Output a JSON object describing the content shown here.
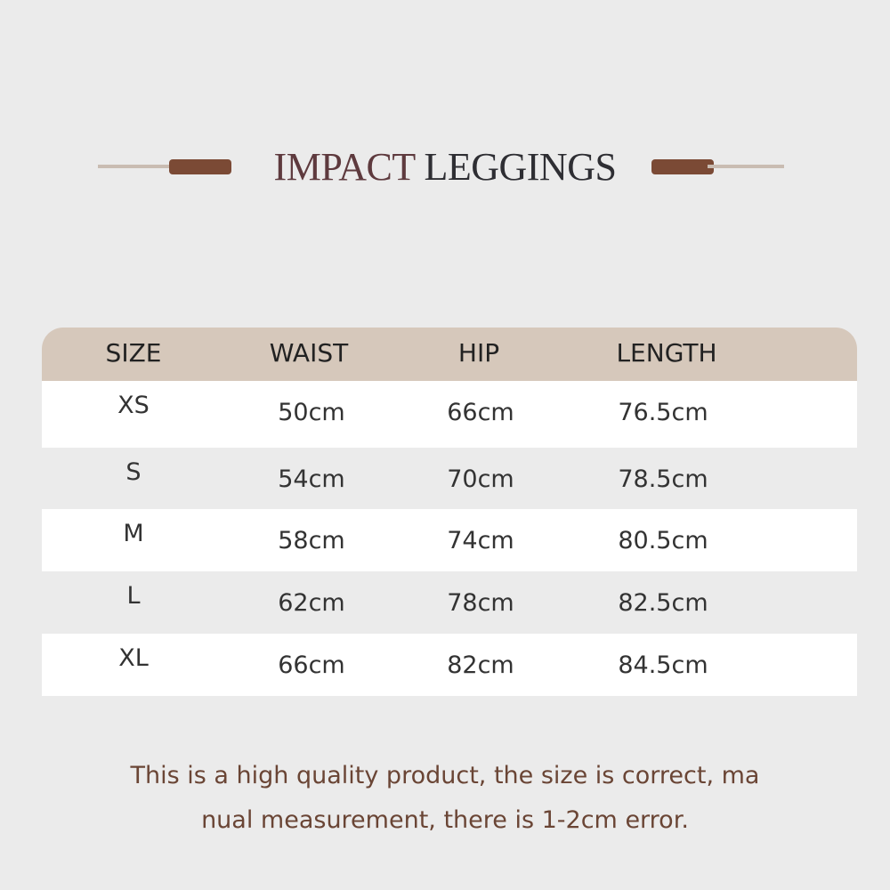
{
  "title": {
    "part1": "IMPACT",
    "part2": "LEGGINGS"
  },
  "colors": {
    "background": "#ebebeb",
    "header": "#d6c8bb",
    "accent": "#7b4a35",
    "note_text": "#6a4535"
  },
  "table": {
    "headers": [
      "SIZE",
      "WAIST",
      "HIP",
      "LENGTH"
    ],
    "rows": [
      [
        "XS",
        "50cm",
        "66cm",
        "76.5cm"
      ],
      [
        "S",
        "54cm",
        "70cm",
        "78.5cm"
      ],
      [
        "M",
        "58cm",
        "74cm",
        "80.5cm"
      ],
      [
        "L",
        "62cm",
        "78cm",
        "82.5cm"
      ],
      [
        "XL",
        "66cm",
        "82cm",
        "84.5cm"
      ]
    ]
  },
  "note": {
    "line1": "This is a high quality product, the size is correct, ma",
    "line2": "nual measurement, there is 1-2cm error."
  }
}
